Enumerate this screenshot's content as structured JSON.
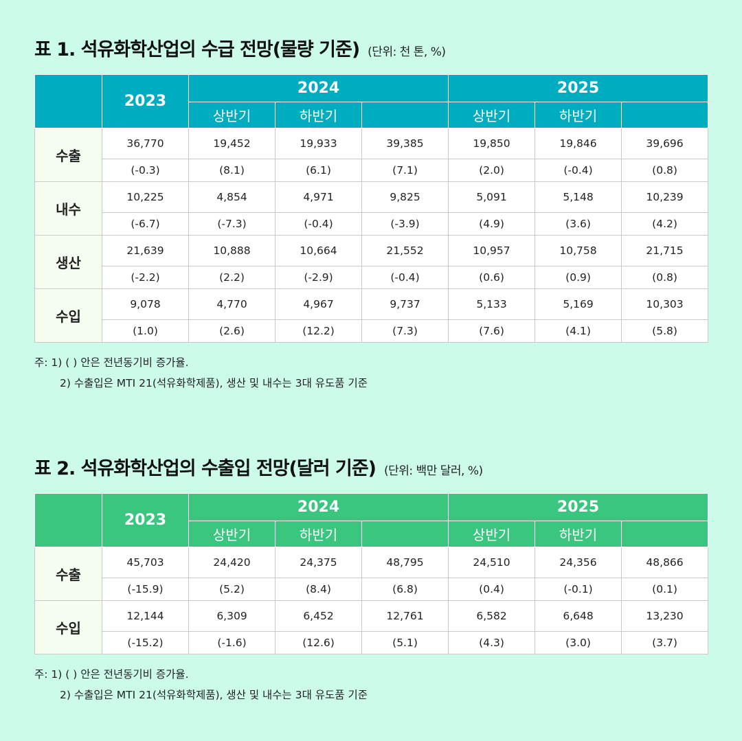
{
  "headers": {
    "h2023": "2023",
    "h2024": "2024",
    "h2025": "2025",
    "first_half": "상반기",
    "second_half": "하반기"
  },
  "table1": {
    "title": "표 1. 석유화학산업의 수급 전망(물량 기준)",
    "unit": "(단위: 천 톤, %)",
    "rows": [
      {
        "label": "수출",
        "values": [
          "36,770",
          "19,452",
          "19,933",
          "39,385",
          "19,850",
          "19,846",
          "39,696"
        ],
        "changes": [
          "(-0.3)",
          "(8.1)",
          "(6.1)",
          "(7.1)",
          "(2.0)",
          "(-0.4)",
          "(0.8)"
        ]
      },
      {
        "label": "내수",
        "values": [
          "10,225",
          "4,854",
          "4,971",
          "9,825",
          "5,091",
          "5,148",
          "10,239"
        ],
        "changes": [
          "(-6.7)",
          "(-7.3)",
          "(-0.4)",
          "(-3.9)",
          "(4.9)",
          "(3.6)",
          "(4.2)"
        ]
      },
      {
        "label": "생산",
        "values": [
          "21,639",
          "10,888",
          "10,664",
          "21,552",
          "10,957",
          "10,758",
          "21,715"
        ],
        "changes": [
          "(-2.2)",
          "(2.2)",
          "(-2.9)",
          "(-0.4)",
          "(0.6)",
          "(0.9)",
          "(0.8)"
        ]
      },
      {
        "label": "수입",
        "values": [
          "9,078",
          "4,770",
          "4,967",
          "9,737",
          "5,133",
          "5,169",
          "10,303"
        ],
        "changes": [
          "(1.0)",
          "(2.6)",
          "(12.2)",
          "(7.3)",
          "(7.6)",
          "(4.1)",
          "(5.8)"
        ]
      }
    ],
    "notes": [
      "주: 1) (    ) 안은 전년동기비 증가율.",
      "2) 수출입은 MTI 21(석유화학제품), 생산 및 내수는 3대 유도품 기준"
    ]
  },
  "table2": {
    "title": "표 2. 석유화학산업의 수출입 전망(달러 기준)",
    "unit": "(단위: 백만 달러, %)",
    "rows": [
      {
        "label": "수출",
        "values": [
          "45,703",
          "24,420",
          "24,375",
          "48,795",
          "24,510",
          "24,356",
          "48,866"
        ],
        "changes": [
          "(-15.9)",
          "(5.2)",
          "(8.4)",
          "(6.8)",
          "(0.4)",
          "(-0.1)",
          "(0.1)"
        ]
      },
      {
        "label": "수입",
        "values": [
          "12,144",
          "6,309",
          "6,452",
          "12,761",
          "6,582",
          "6,648",
          "13,230"
        ],
        "changes": [
          "(-15.2)",
          "(-1.6)",
          "(12.6)",
          "(5.1)",
          "(4.3)",
          "(3.0)",
          "(3.7)"
        ]
      }
    ],
    "notes": [
      "주: 1) (    ) 안은 전년동기비 증가율.",
      "2) 수출입은 MTI 21(석유화학제품), 생산 및 내수는 3대 유도품 기준"
    ]
  },
  "colors": {
    "table1_header": "#00adc0",
    "table2_header": "#3ac67e",
    "background": "#ccfbea",
    "row_label_bg": "#f4fdf0"
  }
}
